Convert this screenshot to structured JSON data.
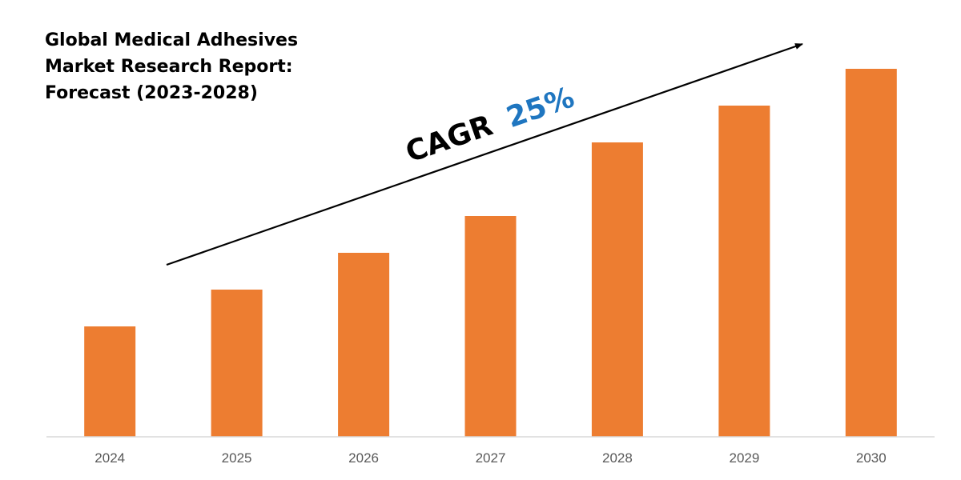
{
  "title_lines": [
    "Global Medical Adhesives",
    "Market Research Report:",
    "Forecast (2023-2028)"
  ],
  "annotation": {
    "label": "CAGR",
    "value": "25%",
    "label_color": "#000000",
    "value_color": "#1F76C0"
  },
  "colors": {
    "bar": "#ED7D31",
    "axis": "#D9D9D9",
    "tick_text": "#595959",
    "arrow": "#000000"
  },
  "chart_data": {
    "type": "bar",
    "title": "Global Medical Adhesives Market Research Report: Forecast (2023-2028)",
    "categories": [
      "2024",
      "2025",
      "2026",
      "2027",
      "2028",
      "2029",
      "2030"
    ],
    "values": [
      30,
      40,
      50,
      60,
      80,
      90,
      100
    ],
    "value_scale": "relative (no y-axis printed)",
    "ylim": [
      0,
      100
    ],
    "xlabel": "",
    "ylabel": "",
    "grid": false,
    "legend": "none",
    "annotation": "CAGR 25%"
  }
}
